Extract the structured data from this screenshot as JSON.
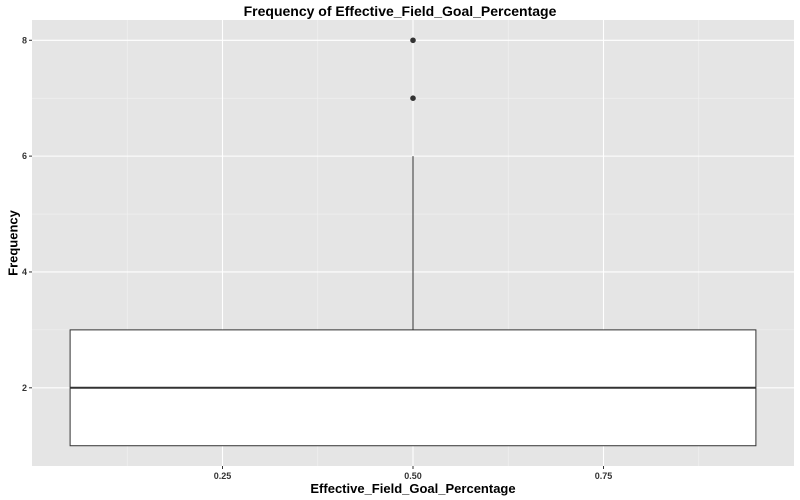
{
  "chart_data": {
    "type": "boxplot",
    "title": "Frequency of Effective_Field_Goal_Percentage",
    "xlabel": "Effective_Field_Goal_Percentage",
    "ylabel": "Frequency",
    "x_ticks": [
      0.25,
      0.5,
      0.75
    ],
    "x_tick_labels": [
      "0.25",
      "0.50",
      "0.75"
    ],
    "y_ticks": [
      2,
      4,
      6,
      8
    ],
    "y_tick_labels": [
      "2",
      "4",
      "6",
      "8"
    ],
    "xlim": [
      0.0,
      1.0
    ],
    "ylim": [
      0.65,
      8.35
    ],
    "box": {
      "x_center": 0.5,
      "x_left": 0.05,
      "x_right": 0.95,
      "q1": 1,
      "median": 2,
      "q3": 3,
      "whisker_low": 1,
      "whisker_high": 6,
      "outliers": [
        7,
        8
      ]
    },
    "grid": true,
    "colors": {
      "panel_bg": "#e5e5e5",
      "grid_major": "#ffffff",
      "grid_minor": "#f2f2f2",
      "box_fill": "#ffffff",
      "box_stroke": "#333333",
      "tick_text": "#333333"
    }
  }
}
